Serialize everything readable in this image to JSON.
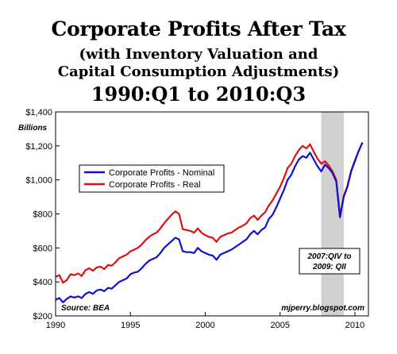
{
  "title": "Corporate Profits After Tax",
  "subtitle_1": "(with Inventory Valuation and",
  "subtitle_2": "Capital Consumption Adjustments)",
  "period": "1990:Q1 to 2010:Q3",
  "colors": {
    "nominal": "#1010d0",
    "real": "#e01010",
    "recession": "#d0d0d0",
    "axis": "#000000"
  },
  "chart_data": {
    "type": "line",
    "title": "Corporate Profits After Tax",
    "units_label": "Billions",
    "source": "Source: BEA",
    "credit": "mjperry.blogspot.com",
    "annotation": {
      "line1": "2007:QIV to",
      "line2": "2009: QII",
      "shaded_from": 2007.75,
      "shaded_to": 2009.25
    },
    "xlim": [
      1990,
      2010.9
    ],
    "ylim": [
      200,
      1400
    ],
    "xticks": [
      1990,
      1995,
      2000,
      2005,
      2010
    ],
    "xtick_labels": [
      "1990",
      "1995",
      "2000",
      "2005",
      "2010"
    ],
    "yticks": [
      200,
      400,
      600,
      800,
      1000,
      1200,
      1400
    ],
    "ytick_labels": [
      "$200",
      "$400",
      "$600",
      "$800",
      "$1,000",
      "$1,200",
      "$1,400"
    ],
    "legend_position": "upper-left",
    "series": [
      {
        "name": "Corporate Profits - Nominal",
        "color": "#1010d0",
        "x": [
          1990.0,
          1990.25,
          1990.5,
          1990.75,
          1991.0,
          1991.25,
          1991.5,
          1991.75,
          1992.0,
          1992.25,
          1992.5,
          1992.75,
          1993.0,
          1993.25,
          1993.5,
          1993.75,
          1994.0,
          1994.25,
          1994.5,
          1994.75,
          1995.0,
          1995.25,
          1995.5,
          1995.75,
          1996.0,
          1996.25,
          1996.5,
          1996.75,
          1997.0,
          1997.25,
          1997.5,
          1997.75,
          1998.0,
          1998.25,
          1998.5,
          1998.75,
          1999.0,
          1999.25,
          1999.5,
          1999.75,
          2000.0,
          2000.25,
          2000.5,
          2000.75,
          2001.0,
          2001.25,
          2001.5,
          2001.75,
          2002.0,
          2002.25,
          2002.5,
          2002.75,
          2003.0,
          2003.25,
          2003.5,
          2003.75,
          2004.0,
          2004.25,
          2004.5,
          2004.75,
          2005.0,
          2005.25,
          2005.5,
          2005.75,
          2006.0,
          2006.25,
          2006.5,
          2006.75,
          2007.0,
          2007.25,
          2007.5,
          2007.75,
          2008.0,
          2008.25,
          2008.5,
          2008.75,
          2009.0,
          2009.25,
          2009.5,
          2009.75,
          2010.0,
          2010.25,
          2010.5
        ],
        "values": [
          295,
          305,
          280,
          300,
          315,
          308,
          315,
          305,
          330,
          340,
          330,
          350,
          355,
          345,
          365,
          360,
          380,
          400,
          410,
          420,
          445,
          455,
          460,
          480,
          505,
          525,
          535,
          545,
          570,
          600,
          620,
          640,
          660,
          650,
          580,
          575,
          575,
          570,
          600,
          580,
          570,
          560,
          555,
          530,
          560,
          570,
          580,
          590,
          605,
          620,
          635,
          650,
          680,
          700,
          680,
          705,
          720,
          770,
          795,
          840,
          890,
          940,
          1000,
          1030,
          1080,
          1120,
          1140,
          1130,
          1160,
          1120,
          1080,
          1050,
          1090,
          1070,
          1040,
          990,
          780,
          900,
          960,
          1050,
          1110,
          1170,
          1220
        ]
      },
      {
        "name": "Corporate Profits - Real",
        "color": "#e01010",
        "x": [
          1990.0,
          1990.25,
          1990.5,
          1990.75,
          1991.0,
          1991.25,
          1991.5,
          1991.75,
          1992.0,
          1992.25,
          1992.5,
          1992.75,
          1993.0,
          1993.25,
          1993.5,
          1993.75,
          1994.0,
          1994.25,
          1994.5,
          1994.75,
          1995.0,
          1995.25,
          1995.5,
          1995.75,
          1996.0,
          1996.25,
          1996.5,
          1996.75,
          1997.0,
          1997.25,
          1997.5,
          1997.75,
          1998.0,
          1998.25,
          1998.5,
          1998.75,
          1999.0,
          1999.25,
          1999.5,
          1999.75,
          2000.0,
          2000.25,
          2000.5,
          2000.75,
          2001.0,
          2001.25,
          2001.5,
          2001.75,
          2002.0,
          2002.25,
          2002.5,
          2002.75,
          2003.0,
          2003.25,
          2003.5,
          2003.75,
          2004.0,
          2004.25,
          2004.5,
          2004.75,
          2005.0,
          2005.25,
          2005.5,
          2005.75,
          2006.0,
          2006.25,
          2006.5,
          2006.75,
          2007.0,
          2007.25,
          2007.5,
          2007.75,
          2008.0,
          2008.25,
          2008.5,
          2008.75,
          2009.0,
          2009.25,
          2009.5,
          2009.75,
          2010.0,
          2010.25,
          2010.5
        ],
        "values": [
          430,
          440,
          395,
          410,
          445,
          440,
          450,
          435,
          470,
          480,
          465,
          485,
          490,
          475,
          500,
          495,
          515,
          540,
          550,
          560,
          580,
          590,
          600,
          620,
          645,
          665,
          680,
          690,
          715,
          745,
          770,
          795,
          815,
          800,
          710,
          705,
          700,
          690,
          715,
          690,
          675,
          665,
          660,
          635,
          665,
          675,
          685,
          690,
          705,
          720,
          730,
          745,
          775,
          790,
          765,
          790,
          810,
          850,
          880,
          920,
          960,
          1010,
          1070,
          1095,
          1140,
          1175,
          1200,
          1185,
          1210,
          1165,
          1125,
          1095,
          1110,
          1085,
          1050,
          1000,
          785,
          905,
          965,
          1055,
          1115,
          1170,
          1220
        ]
      }
    ]
  }
}
